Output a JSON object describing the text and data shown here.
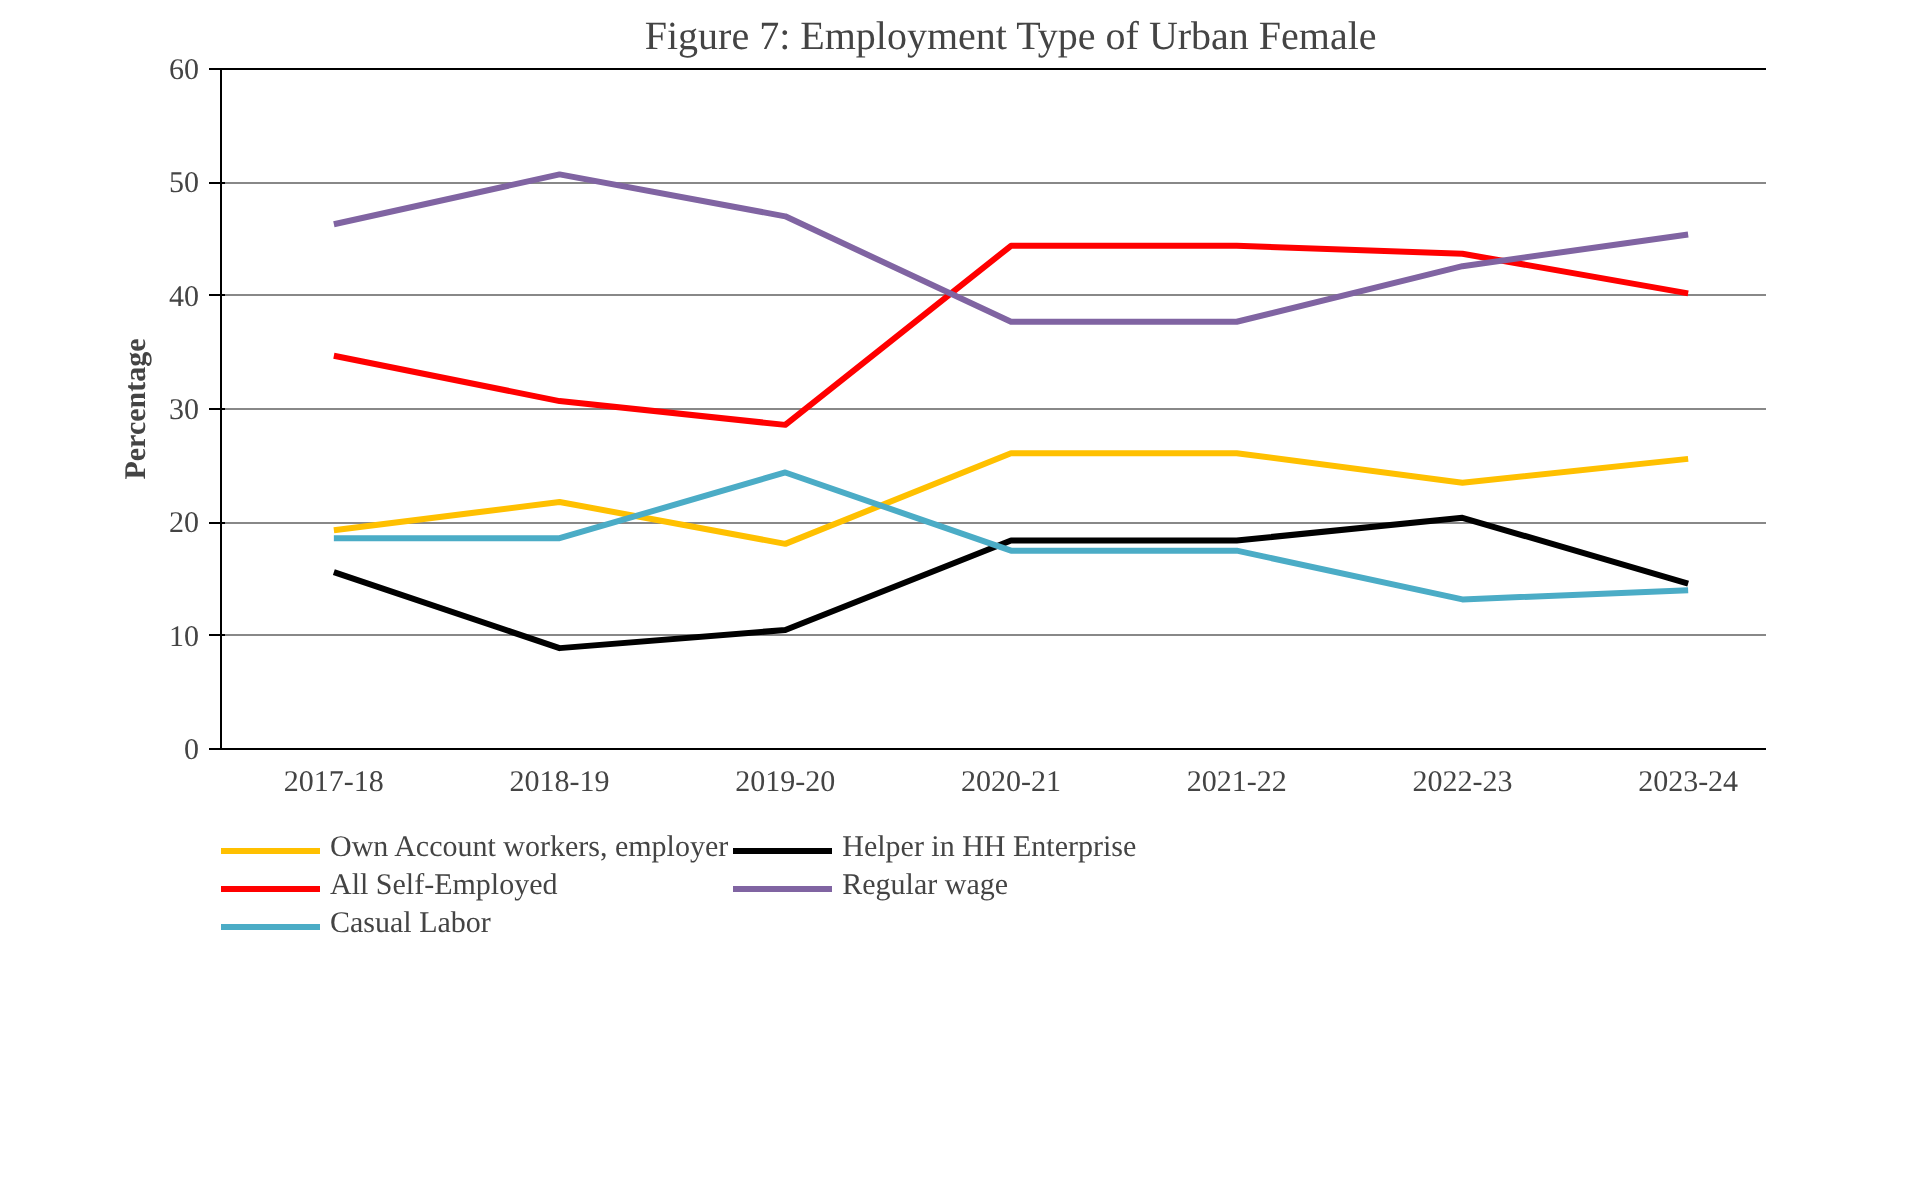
{
  "chart_data": {
    "type": "line",
    "title": "Figure 7: Employment Type of Urban Female",
    "ylabel": "Percentage",
    "categories": [
      "2017-18",
      "2018-19",
      "2019-20",
      "2020-21",
      "2021-22",
      "2022-23",
      "2023-24"
    ],
    "series": [
      {
        "name": "Own Account workers, employer",
        "color": "#ffc000",
        "values": [
          19.3,
          21.8,
          18.1,
          26.1,
          26.1,
          23.5,
          25.6
        ]
      },
      {
        "name": "Helper in HH Enterprise",
        "color": "#000000",
        "values": [
          15.6,
          8.9,
          10.5,
          18.4,
          18.4,
          20.4,
          14.6
        ]
      },
      {
        "name": "All Self-Employed",
        "color": "#ff0000",
        "values": [
          34.7,
          30.7,
          28.6,
          44.4,
          44.4,
          43.7,
          40.2
        ]
      },
      {
        "name": "Regular wage",
        "color": "#8064a2",
        "values": [
          46.3,
          50.7,
          47.0,
          37.7,
          37.7,
          42.6,
          45.4
        ]
      },
      {
        "name": "Casual Labor",
        "color": "#4bacc6",
        "values": [
          18.6,
          18.6,
          24.4,
          17.5,
          17.5,
          13.2,
          14.0
        ]
      }
    ],
    "ylim": [
      0,
      60
    ],
    "yticks": [
      0,
      10,
      20,
      30,
      40,
      50,
      60
    ],
    "grid": "y",
    "legend": "bottom",
    "marker": "none",
    "line_style": "solid"
  }
}
